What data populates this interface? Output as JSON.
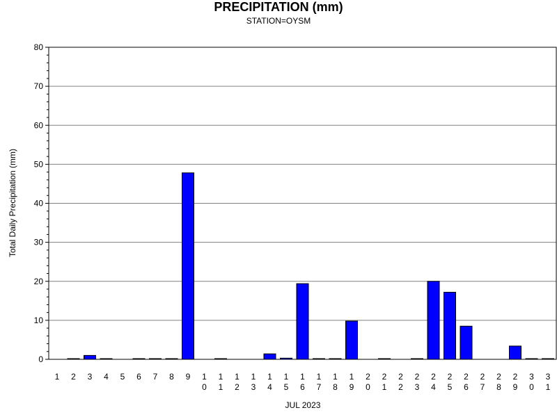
{
  "chart_data": {
    "type": "bar",
    "title": "PRECIPITATION (mm)",
    "subtitle": "STATION=OYSM",
    "xlabel": "JUL 2023",
    "ylabel": "Total Daily Precipitation (mm)",
    "ylim": [
      0,
      80
    ],
    "yticks": [
      0,
      10,
      20,
      30,
      40,
      50,
      60,
      70,
      80
    ],
    "grid": true,
    "bar_color": "#0000ff",
    "categories": [
      "1",
      "2",
      "3",
      "4",
      "5",
      "6",
      "7",
      "8",
      "9",
      "10",
      "11",
      "12",
      "13",
      "14",
      "15",
      "16",
      "17",
      "18",
      "19",
      "20",
      "21",
      "22",
      "23",
      "24",
      "25",
      "26",
      "27",
      "28",
      "29",
      "30",
      "31"
    ],
    "values": [
      0,
      0.1,
      1.0,
      0.1,
      0,
      0.1,
      0.1,
      0.1,
      47.8,
      0,
      0.1,
      0,
      0,
      1.4,
      0.3,
      19.4,
      0.1,
      0.1,
      9.8,
      0,
      0.1,
      0,
      0.1,
      20.0,
      17.2,
      8.5,
      0,
      0,
      3.4,
      0.1,
      0.1
    ]
  }
}
